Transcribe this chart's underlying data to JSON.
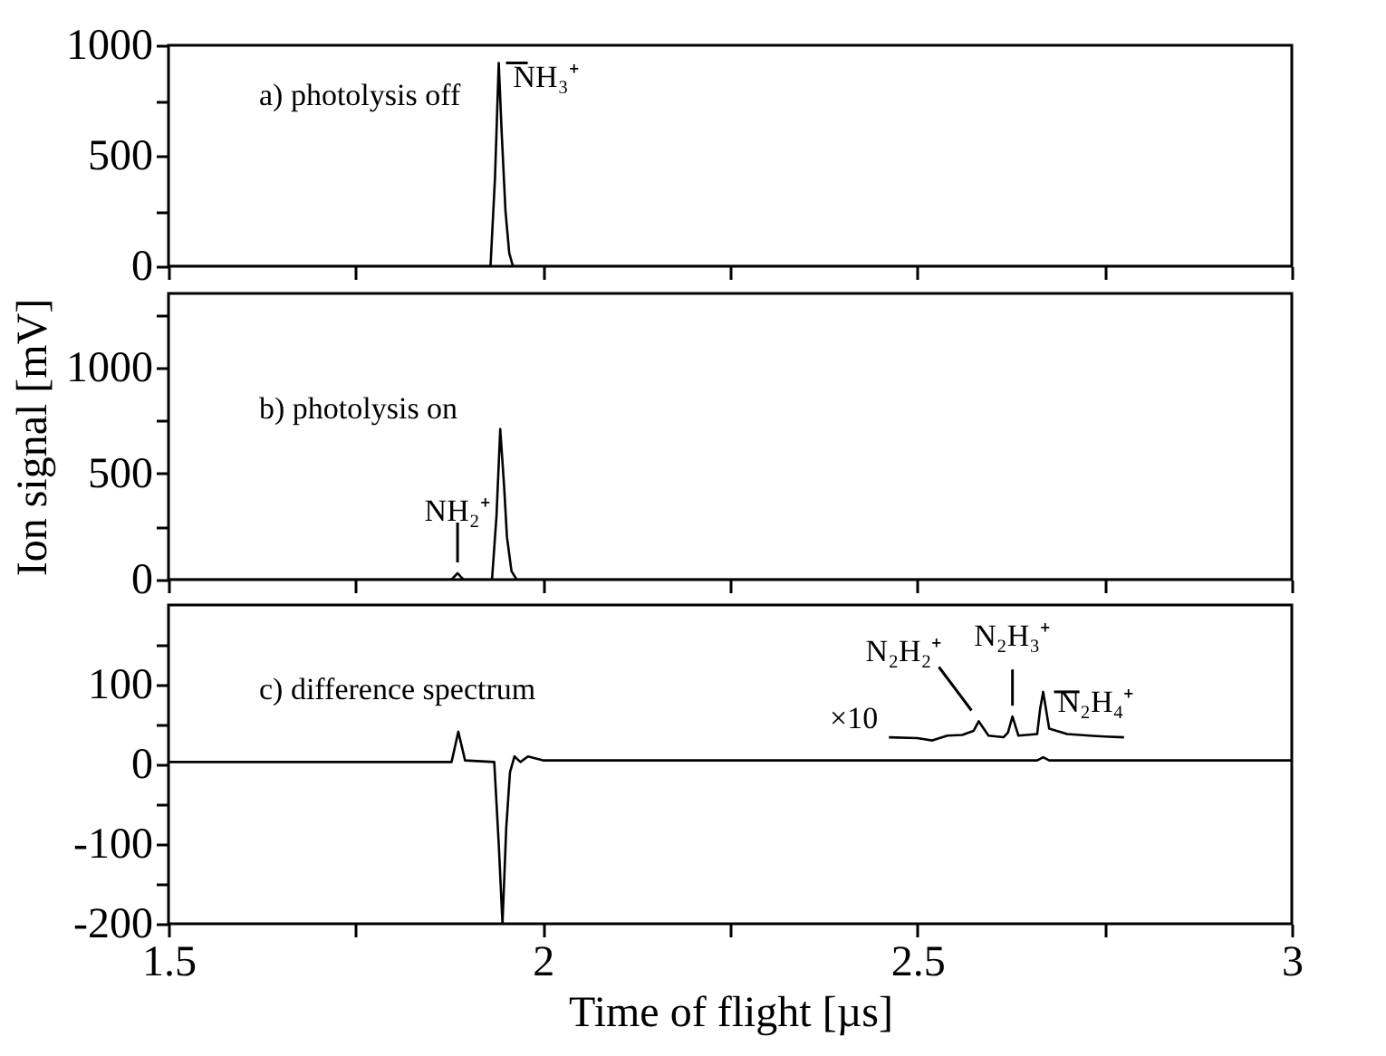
{
  "chart_data": [
    {
      "type": "line",
      "xlim": [
        1.5,
        3
      ],
      "xticks": [
        1.5,
        {
          "value": 1.75,
          "label": null
        },
        2,
        {
          "value": 2.25,
          "label": null
        },
        2.5,
        {
          "value": 2.75,
          "label": null
        },
        3
      ],
      "ylim": [
        0,
        1000
      ],
      "yticks": [
        0,
        {
          "value": 250,
          "label": null
        },
        500,
        {
          "value": 750,
          "label": null
        },
        1000
      ],
      "tick_labels": "y",
      "grid": false,
      "legend": false,
      "series": [
        {
          "color": "#000000",
          "x": [
            1.5,
            1.93,
            1.936,
            1.941,
            1.945,
            1.95,
            1.955,
            1.96,
            1.97,
            2.0,
            3
          ],
          "values": [
            0,
            0,
            400,
            920,
            600,
            250,
            60,
            0,
            0,
            0,
            0
          ]
        }
      ],
      "annotations": [
        "a) photolysis off",
        {
          "text": "NH₃⁺",
          "x": 1.941,
          "y": 920
        }
      ]
    },
    {
      "type": "line",
      "xlim": [
        1.5,
        3
      ],
      "xticks": [
        1.5,
        {
          "value": 1.75,
          "label": null
        },
        2,
        {
          "value": 2.25,
          "label": null
        },
        2.5,
        {
          "value": 2.75,
          "label": null
        },
        3
      ],
      "ylim": [
        0,
        1350
      ],
      "yticks": [
        0,
        {
          "value": 250,
          "label": null
        },
        500,
        {
          "value": 750,
          "label": null
        },
        1000,
        {
          "value": 1250,
          "label": null
        }
      ],
      "ylabel": "Ion signal  [mV]",
      "tick_labels": "y",
      "grid": false,
      "legend": false,
      "series": [
        {
          "color": "#000000",
          "x": [
            1.5,
            1.878,
            1.886,
            1.894,
            1.932,
            1.938,
            1.943,
            1.948,
            1.952,
            1.958,
            1.965,
            2.0,
            3
          ],
          "values": [
            0,
            0,
            30,
            0,
            0,
            300,
            710,
            450,
            200,
            40,
            0,
            0,
            0
          ]
        }
      ],
      "annotations": [
        "b) photolysis on",
        {
          "text": "NH₂⁺",
          "x": 1.886,
          "y": 30
        }
      ]
    },
    {
      "type": "line",
      "xlim": [
        1.5,
        3
      ],
      "xticks": [
        1.5,
        {
          "value": 1.75,
          "label": null
        },
        2,
        {
          "value": 2.25,
          "label": null
        },
        2.5,
        {
          "value": 2.75,
          "label": null
        },
        3
      ],
      "ylim": [
        -200,
        200
      ],
      "yticks": [
        -200,
        {
          "value": -150,
          "label": null
        },
        -100,
        {
          "value": -50,
          "label": null
        },
        0,
        {
          "value": 50,
          "label": null
        },
        100,
        {
          "value": 150,
          "label": null
        }
      ],
      "xlabel": "Time of flight  [µs]",
      "grid": false,
      "legend": false,
      "series": [
        {
          "color": "#000000",
          "x": [
            1.5,
            1.878,
            1.887,
            1.896,
            1.935,
            1.941,
            1.946,
            1.951,
            1.956,
            1.962,
            1.97,
            1.98,
            2.0,
            2.5,
            2.66,
            2.668,
            2.676,
            3
          ],
          "values": [
            3,
            3,
            41,
            5,
            3,
            -100,
            -200,
            -80,
            -10,
            10,
            3,
            10,
            5,
            5,
            5,
            9,
            5,
            5
          ]
        },
        {
          "color": "#000000",
          "x": [
            2.462,
            2.5,
            2.52,
            2.54,
            2.56,
            2.575,
            2.582,
            2.595,
            2.615,
            2.621,
            2.627,
            2.635,
            2.66,
            2.664,
            2.668,
            2.676,
            2.7,
            2.73,
            2.75,
            2.776
          ],
          "values": [
            34,
            33,
            30,
            36,
            37,
            42,
            54,
            36,
            34,
            40,
            60,
            36,
            38,
            70,
            91,
            45,
            38,
            36,
            35,
            34
          ]
        }
      ],
      "annotations": [
        "c) difference spectrum",
        {
          "text": "×10",
          "x": 2.462,
          "y": 34
        },
        {
          "text": "N₂H₂⁺",
          "x": 2.582,
          "y": 54
        },
        {
          "text": "N₂H₃⁺",
          "x": 2.627,
          "y": 60
        },
        {
          "text": "N₂H₄⁺",
          "x": 2.668,
          "y": 91
        }
      ]
    }
  ]
}
